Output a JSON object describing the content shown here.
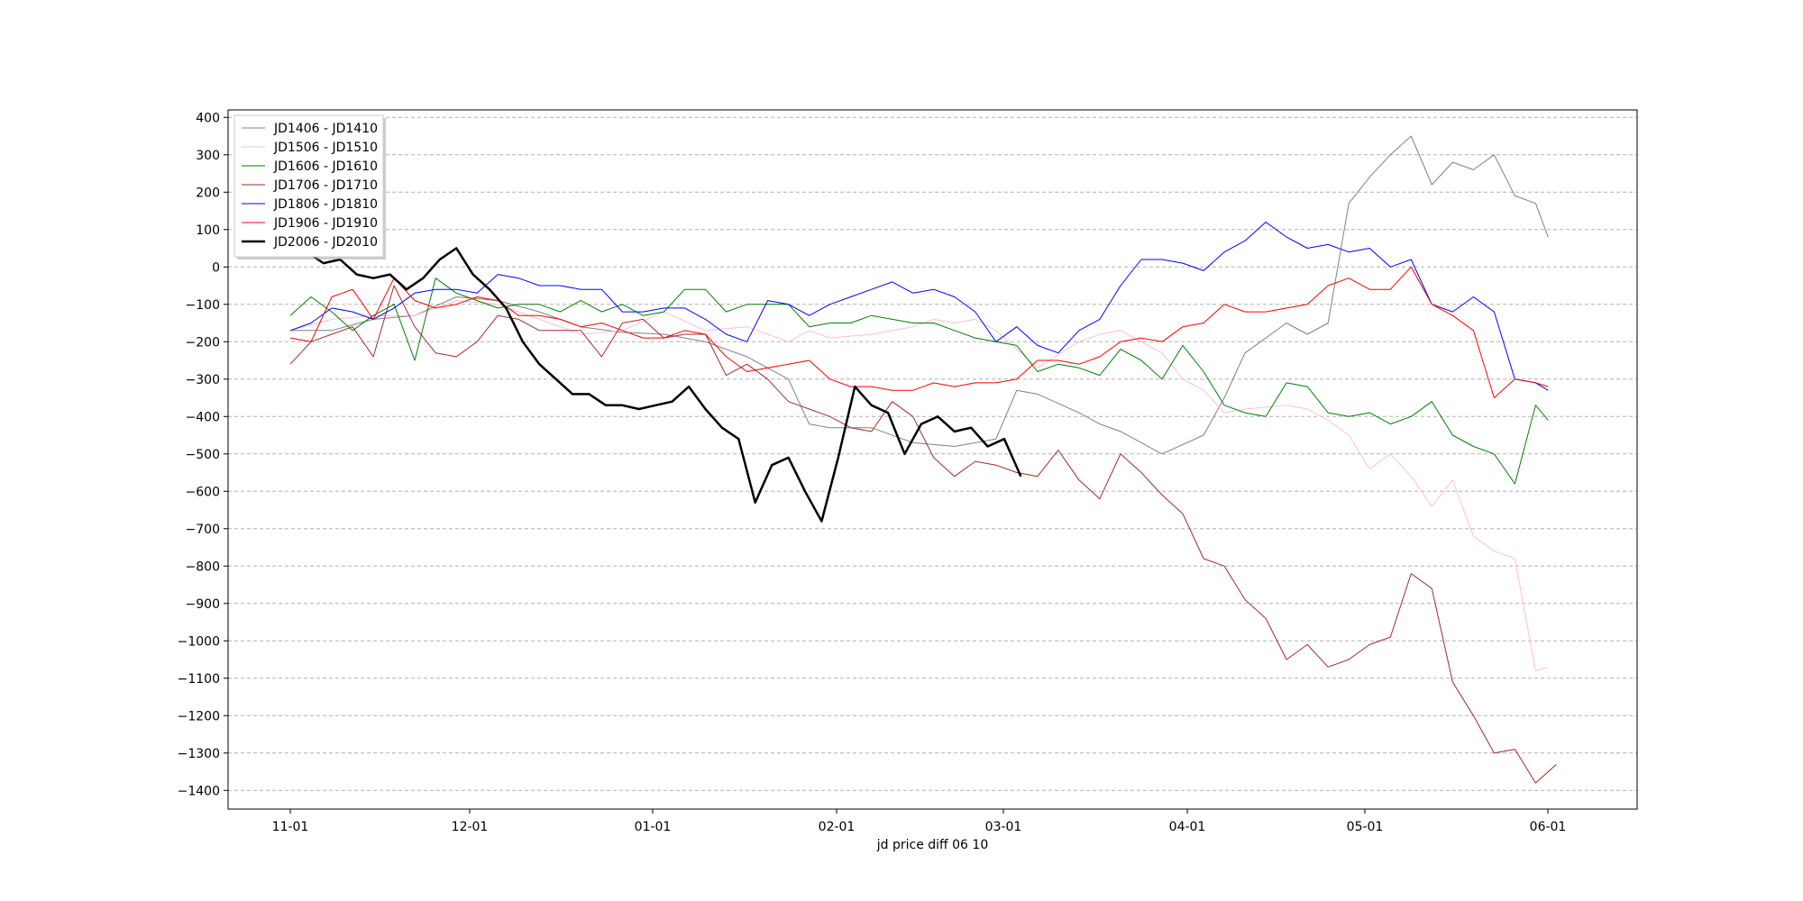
{
  "chart_data": {
    "type": "line",
    "title": "",
    "xlabel": "jd price diff 06 10",
    "ylabel": "",
    "x_ticks": [
      "11-01",
      "12-01",
      "01-01",
      "02-01",
      "03-01",
      "04-01",
      "05-01",
      "06-01"
    ],
    "ylim": [
      -1450,
      420
    ],
    "yticks": [
      400,
      300,
      200,
      100,
      0,
      -100,
      -200,
      -300,
      -400,
      -500,
      -600,
      -700,
      -800,
      -900,
      -1000,
      -1100,
      -1200,
      -1300,
      -1400
    ],
    "grid": "horizontal dashed",
    "legend_position": "top-left",
    "series": [
      {
        "name": "JD1406 - JD1410",
        "color": "#808080",
        "width": 1,
        "x": [
          0,
          10,
          20,
          30,
          40,
          50,
          60,
          65,
          70,
          80,
          90,
          100,
          110,
          120,
          125,
          130,
          140,
          150,
          160,
          170,
          175,
          180,
          190,
          195,
          200,
          210,
          220,
          225,
          230,
          240,
          245,
          250,
          255,
          260,
          265,
          270,
          275,
          280,
          285,
          290,
          295,
          300,
          303
        ],
        "y": [
          -170,
          -170,
          -140,
          -130,
          -80,
          -90,
          -120,
          -140,
          -160,
          -175,
          -180,
          -200,
          -240,
          -300,
          -420,
          -430,
          -430,
          -470,
          -480,
          -460,
          -330,
          -340,
          -390,
          -420,
          -440,
          -500,
          -450,
          -350,
          -230,
          -150,
          -180,
          -150,
          170,
          240,
          300,
          350,
          220,
          280,
          260,
          300,
          190,
          170,
          80
        ]
      },
      {
        "name": "JD1506 - JD1510",
        "color": "#ffc0cb",
        "width": 1,
        "x": [
          0,
          10,
          20,
          30,
          40,
          50,
          60,
          70,
          80,
          90,
          100,
          110,
          115,
          120,
          125,
          130,
          140,
          150,
          155,
          160,
          165,
          170,
          175,
          180,
          190,
          195,
          200,
          210,
          215,
          220,
          225,
          230,
          240,
          245,
          250,
          255,
          260,
          265,
          270,
          275,
          280,
          285,
          290,
          295,
          300,
          303
        ],
        "y": [
          -170,
          -140,
          -130,
          -130,
          -90,
          -100,
          -140,
          -180,
          -170,
          -120,
          -170,
          -160,
          -180,
          -200,
          -170,
          -190,
          -180,
          -160,
          -140,
          -150,
          -140,
          -170,
          -220,
          -270,
          -200,
          -180,
          -170,
          -230,
          -300,
          -330,
          -390,
          -380,
          -370,
          -380,
          -410,
          -450,
          -540,
          -500,
          -560,
          -640,
          -570,
          -720,
          -760,
          -780,
          -1080,
          -1070
        ]
      },
      {
        "name": "JD1606 - JD1610",
        "color": "#008000",
        "width": 1,
        "x": [
          0,
          5,
          10,
          15,
          20,
          25,
          30,
          35,
          40,
          45,
          50,
          55,
          60,
          65,
          70,
          75,
          80,
          85,
          90,
          95,
          100,
          105,
          110,
          115,
          120,
          125,
          130,
          135,
          140,
          145,
          150,
          155,
          160,
          165,
          170,
          175,
          180,
          185,
          190,
          195,
          200,
          205,
          210,
          215,
          220,
          225,
          230,
          235,
          240,
          245,
          250,
          255,
          260,
          265,
          270,
          275,
          280,
          285,
          290,
          295,
          300,
          303
        ],
        "y": [
          -130,
          -80,
          -120,
          -170,
          -130,
          -100,
          -250,
          -30,
          -70,
          -90,
          -110,
          -100,
          -100,
          -120,
          -90,
          -120,
          -100,
          -130,
          -120,
          -60,
          -60,
          -120,
          -100,
          -100,
          -100,
          -160,
          -150,
          -150,
          -130,
          -140,
          -150,
          -150,
          -170,
          -190,
          -200,
          -210,
          -280,
          -260,
          -270,
          -290,
          -220,
          -250,
          -300,
          -210,
          -280,
          -370,
          -390,
          -400,
          -310,
          -320,
          -390,
          -400,
          -390,
          -420,
          -400,
          -360,
          -450,
          -480,
          -500,
          -580,
          -370,
          -410
        ]
      },
      {
        "name": "JD1706 - JD1710",
        "color": "#a52a2a",
        "width": 1,
        "x": [
          0,
          5,
          10,
          15,
          20,
          25,
          30,
          35,
          40,
          45,
          50,
          55,
          60,
          65,
          70,
          75,
          80,
          85,
          90,
          95,
          100,
          105,
          110,
          115,
          120,
          125,
          130,
          135,
          140,
          145,
          150,
          155,
          160,
          165,
          170,
          175,
          180,
          185,
          190,
          195,
          200,
          205,
          210,
          215,
          220,
          225,
          230,
          235,
          240,
          245,
          250,
          255,
          260,
          265,
          270,
          275,
          280,
          285,
          290,
          295,
          300,
          305
        ],
        "y": [
          -260,
          -200,
          -180,
          -160,
          -240,
          -50,
          -160,
          -230,
          -240,
          -200,
          -130,
          -140,
          -170,
          -170,
          -170,
          -240,
          -150,
          -140,
          -190,
          -180,
          -180,
          -290,
          -260,
          -300,
          -360,
          -380,
          -400,
          -430,
          -440,
          -360,
          -400,
          -510,
          -560,
          -520,
          -530,
          -550,
          -560,
          -490,
          -570,
          -620,
          -500,
          -550,
          -610,
          -660,
          -780,
          -800,
          -890,
          -940,
          -1050,
          -1010,
          -1070,
          -1050,
          -1010,
          -990,
          -820,
          -860,
          -1110,
          -1200,
          -1300,
          -1290,
          -1380,
          -1330
        ]
      },
      {
        "name": "JD1806 - JD1810",
        "color": "#0000ff",
        "width": 1,
        "x": [
          0,
          5,
          10,
          15,
          20,
          25,
          30,
          35,
          40,
          45,
          50,
          55,
          60,
          65,
          70,
          75,
          80,
          85,
          90,
          95,
          100,
          105,
          110,
          115,
          120,
          125,
          130,
          135,
          140,
          145,
          150,
          155,
          160,
          165,
          170,
          175,
          180,
          185,
          190,
          195,
          200,
          205,
          210,
          215,
          220,
          225,
          230,
          235,
          240,
          245,
          250,
          255,
          260,
          265,
          270,
          275,
          280,
          285,
          290,
          295,
          300,
          303
        ],
        "y": [
          -170,
          -150,
          -110,
          -120,
          -140,
          -110,
          -70,
          -60,
          -60,
          -70,
          -20,
          -30,
          -50,
          -50,
          -60,
          -60,
          -120,
          -120,
          -110,
          -110,
          -140,
          -180,
          -200,
          -90,
          -100,
          -130,
          -100,
          -80,
          -60,
          -40,
          -70,
          -60,
          -80,
          -120,
          -200,
          -160,
          -210,
          -230,
          -170,
          -140,
          -50,
          20,
          20,
          10,
          -10,
          40,
          70,
          120,
          80,
          50,
          60,
          40,
          50,
          0,
          20,
          -100,
          -120,
          -80,
          -120,
          -300,
          -310,
          -330
        ]
      },
      {
        "name": "JD1906 - JD1910",
        "color": "#ff0000",
        "width": 1,
        "x": [
          0,
          5,
          10,
          15,
          20,
          25,
          30,
          35,
          40,
          45,
          50,
          55,
          60,
          65,
          70,
          75,
          80,
          85,
          90,
          95,
          100,
          105,
          110,
          115,
          120,
          125,
          130,
          135,
          140,
          145,
          150,
          155,
          160,
          165,
          170,
          175,
          180,
          185,
          190,
          195,
          200,
          205,
          210,
          215,
          220,
          225,
          230,
          235,
          240,
          245,
          250,
          255,
          260,
          265,
          270,
          275,
          280,
          285,
          290,
          295,
          300,
          303
        ],
        "y": [
          -190,
          -200,
          -80,
          -60,
          -140,
          -30,
          -90,
          -110,
          -100,
          -80,
          -90,
          -130,
          -130,
          -140,
          -160,
          -150,
          -170,
          -190,
          -190,
          -170,
          -180,
          -240,
          -280,
          -270,
          -260,
          -250,
          -300,
          -320,
          -320,
          -330,
          -330,
          -310,
          -320,
          -310,
          -310,
          -300,
          -250,
          -250,
          -260,
          -240,
          -200,
          -190,
          -200,
          -160,
          -150,
          -100,
          -120,
          -120,
          -110,
          -100,
          -50,
          -30,
          -60,
          -60,
          0,
          -100,
          -130,
          -170,
          -350,
          -300,
          -310,
          -320
        ]
      },
      {
        "name": "JD2006 - JD2010",
        "color": "#000000",
        "width": 2.5,
        "x": [
          0,
          4,
          8,
          12,
          16,
          20,
          24,
          28,
          32,
          36,
          40,
          44,
          48,
          52,
          56,
          60,
          64,
          68,
          72,
          76,
          80,
          84,
          88,
          92,
          96,
          100,
          104,
          108,
          112,
          116,
          120,
          124,
          128,
          132,
          136,
          140,
          144,
          148,
          152,
          156,
          160,
          164,
          168,
          172,
          176
        ],
        "y": [
          30,
          40,
          10,
          20,
          -20,
          -30,
          -20,
          -60,
          -30,
          20,
          50,
          -20,
          -60,
          -110,
          -200,
          -260,
          -300,
          -340,
          -340,
          -370,
          -370,
          -380,
          -370,
          -360,
          -320,
          -380,
          -430,
          -460,
          -630,
          -530,
          -510,
          -600,
          -680,
          -510,
          -320,
          -370,
          -390,
          -500,
          -420,
          -400,
          -440,
          -430,
          -480,
          -460,
          -560
        ]
      }
    ]
  }
}
